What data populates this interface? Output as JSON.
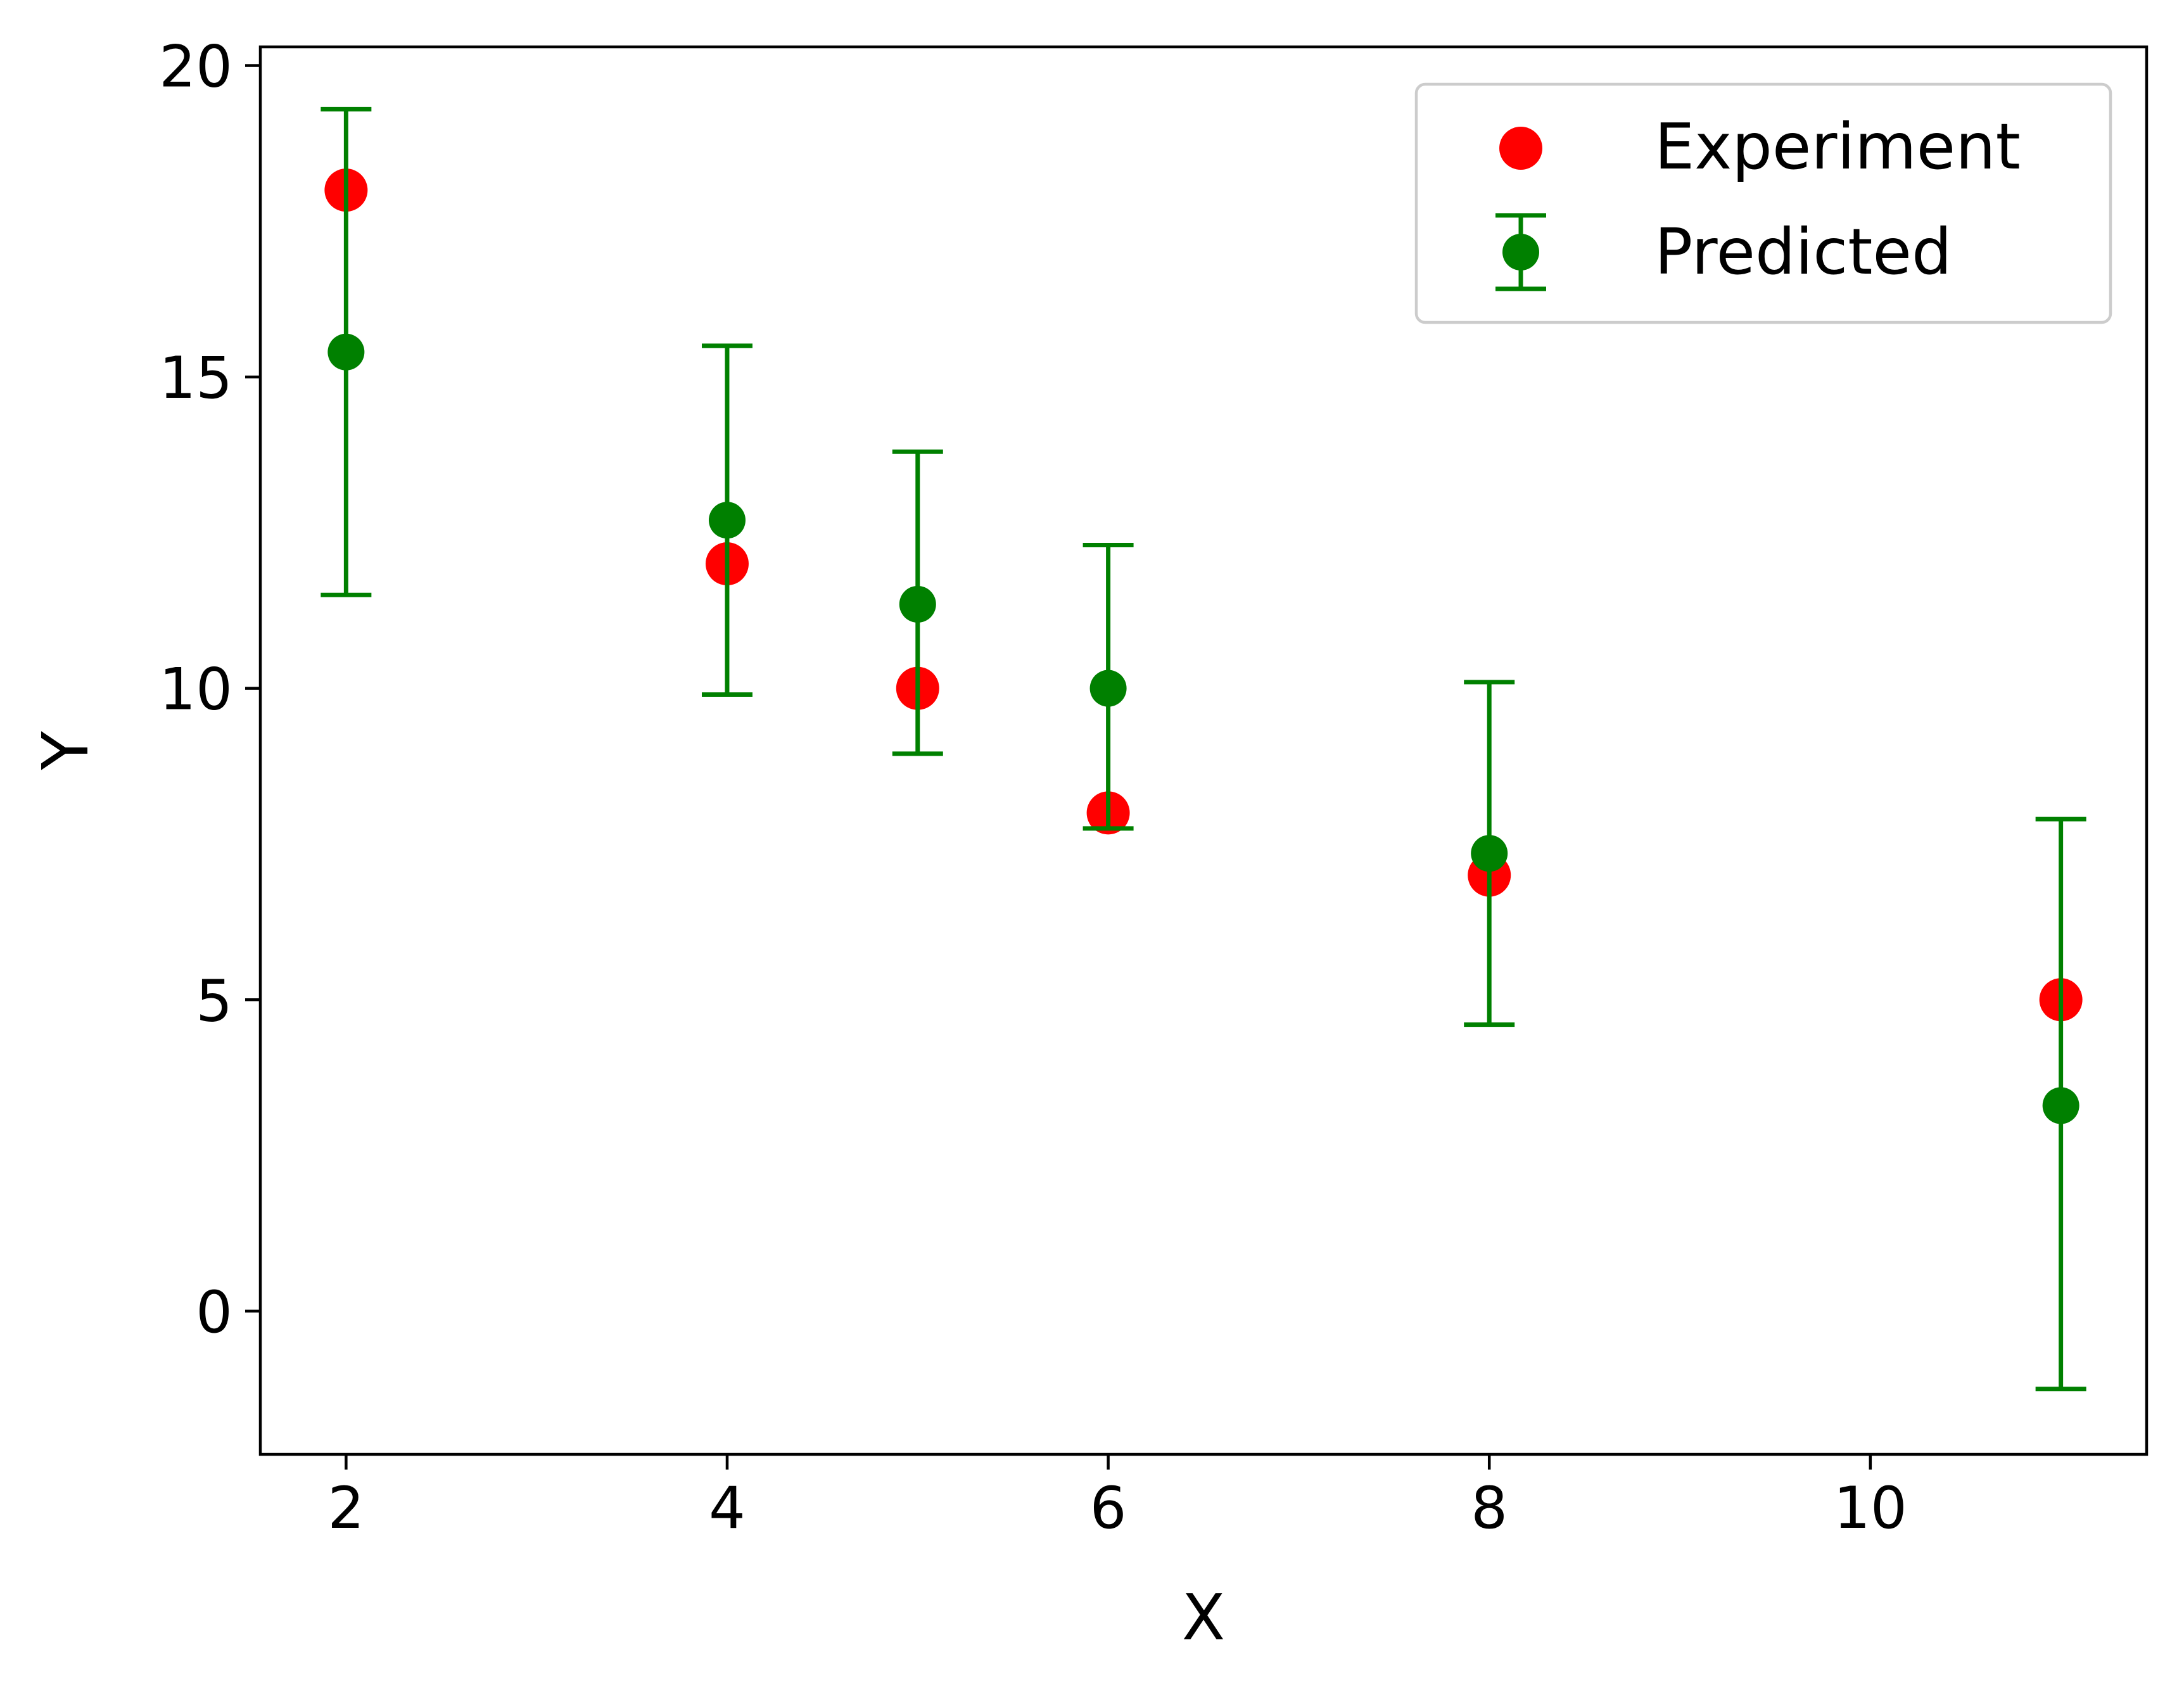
{
  "chart_data": {
    "type": "scatter",
    "title": "",
    "xlabel": "X",
    "ylabel": "Y",
    "xlim": [
      1.55,
      11.45
    ],
    "ylim": [
      -2.3,
      20.3
    ],
    "xticks": [
      2,
      4,
      6,
      8,
      10
    ],
    "yticks": [
      0,
      5,
      10,
      15,
      20
    ],
    "xtick_labels": [
      "2",
      "4",
      "6",
      "8",
      "10"
    ],
    "ytick_labels": [
      "0",
      "5",
      "10",
      "15",
      "20"
    ],
    "grid": false,
    "legend_position": "upper right",
    "series": [
      {
        "name": "Experiment",
        "kind": "scatter",
        "color": "#ff0000",
        "x": [
          2,
          4,
          5,
          6,
          8,
          11
        ],
        "y": [
          18,
          12,
          10,
          8,
          7,
          5
        ]
      },
      {
        "name": "Predicted",
        "kind": "errorbar",
        "color": "#008000",
        "x": [
          2,
          4,
          5,
          6,
          8,
          11
        ],
        "y": [
          15.4,
          12.7,
          11.35,
          10.0,
          7.35,
          3.3
        ],
        "yerr_low": [
          11.5,
          9.9,
          8.95,
          7.75,
          4.6,
          -1.25
        ],
        "yerr_high": [
          19.3,
          15.5,
          13.8,
          12.3,
          10.1,
          7.9
        ]
      }
    ]
  }
}
